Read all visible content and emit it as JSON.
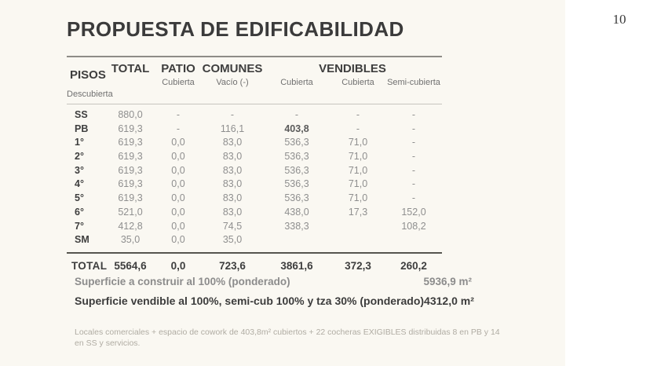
{
  "page": {
    "title": "PROPUESTA DE EDIFICABILIDAD",
    "page_number": "10",
    "colors": {
      "slide_bg": "#FAF8F2",
      "text_dark": "#3B3B3B",
      "text_muted": "#8F8F8F"
    }
  },
  "table": {
    "header": {
      "pisos": "PISOS",
      "groups": [
        {
          "label": "TOTAL",
          "sub": "Cubierta"
        },
        {
          "label": "PATIO",
          "sub": "Vacío (-)"
        },
        {
          "label": "COMUNES",
          "sub": "Cubierta"
        }
      ],
      "vendibles": {
        "label": "VENDIBLES",
        "subs": [
          "Cubierta",
          "Semi-cubierta",
          "Descubierta"
        ]
      }
    },
    "rows": [
      {
        "piso": "SS",
        "total": "880,0",
        "patio": "-",
        "comunes": "-",
        "vend_cub": "-",
        "vend_semi": "-",
        "vend_desc": "-"
      },
      {
        "piso": "PB",
        "total": "619,3",
        "patio": "-",
        "comunes": "116,1",
        "vend_cub": "403,8",
        "vend_semi": "-",
        "vend_desc": "-",
        "emphasis": [
          "vend_cub"
        ]
      },
      {
        "piso": "1°",
        "total": "619,3",
        "patio": "0,0",
        "comunes": "83,0",
        "vend_cub": "536,3",
        "vend_semi": "71,0",
        "vend_desc": "-"
      },
      {
        "piso": "2°",
        "total": "619,3",
        "patio": "0,0",
        "comunes": "83,0",
        "vend_cub": "536,3",
        "vend_semi": "71,0",
        "vend_desc": "-"
      },
      {
        "piso": "3°",
        "total": "619,3",
        "patio": "0,0",
        "comunes": "83,0",
        "vend_cub": "536,3",
        "vend_semi": "71,0",
        "vend_desc": "-"
      },
      {
        "piso": "4°",
        "total": "619,3",
        "patio": "0,0",
        "comunes": "83,0",
        "vend_cub": "536,3",
        "vend_semi": "71,0",
        "vend_desc": "-"
      },
      {
        "piso": "5°",
        "total": "619,3",
        "patio": "0,0",
        "comunes": "83,0",
        "vend_cub": "536,3",
        "vend_semi": "71,0",
        "vend_desc": "-"
      },
      {
        "piso": "6°",
        "total": "521,0",
        "patio": "0,0",
        "comunes": "83,0",
        "vend_cub": "438,0",
        "vend_semi": "17,3",
        "vend_desc": "152,0"
      },
      {
        "piso": "7°",
        "total": "412,8",
        "patio": "0,0",
        "comunes": "74,5",
        "vend_cub": "338,3",
        "vend_semi": "",
        "vend_desc": "108,2"
      },
      {
        "piso": "SM",
        "total": "35,0",
        "patio": "0,0",
        "comunes": "35,0",
        "vend_cub": "",
        "vend_semi": "",
        "vend_desc": ""
      }
    ],
    "total_row": {
      "label": "TOTAL",
      "total": "5564,6",
      "patio": "0,0",
      "comunes": "723,6",
      "vend_cub": "3861,6",
      "vend_semi": "372,3",
      "vend_desc": "260,2"
    }
  },
  "summary": {
    "rows": [
      {
        "label": "Superficie a construir  al 100% (ponderado)",
        "value": "5936,9 m²"
      },
      {
        "label": "Superficie vendible  al 100%, semi-cub 100% y tza 30% (ponderado)",
        "value": "4312,0 m²"
      }
    ]
  },
  "footnote": "Locales comerciales + espacio de cowork de 403,8m² cubiertos + 22 cocheras EXIGIBLES distribuidas 8 en PB y 14 en SS y servicios."
}
